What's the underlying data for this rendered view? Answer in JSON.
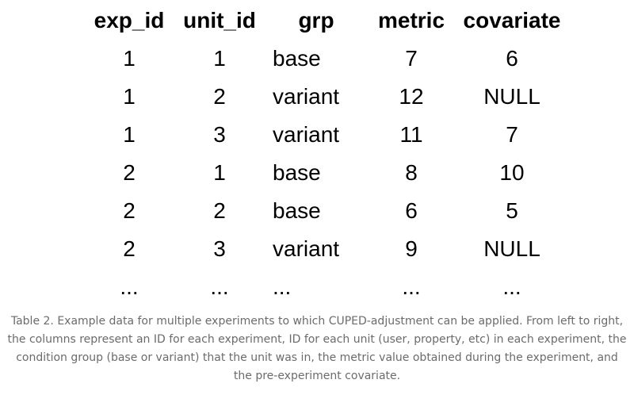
{
  "table": {
    "columns": [
      "exp_id",
      "unit_id",
      "grp",
      "metric",
      "covariate"
    ],
    "rows": [
      [
        "1",
        "1",
        "base",
        "7",
        "6"
      ],
      [
        "1",
        "2",
        "variant",
        "12",
        "NULL"
      ],
      [
        "1",
        "3",
        "variant",
        "11",
        "7"
      ],
      [
        "2",
        "1",
        "base",
        "8",
        "10"
      ],
      [
        "2",
        "2",
        "base",
        "6",
        "5"
      ],
      [
        "2",
        "3",
        "variant",
        "9",
        "NULL"
      ],
      [
        "...",
        "...",
        "...",
        "...",
        "..."
      ]
    ]
  },
  "caption": "Table 2. Example data for multiple experiments to which CUPED-adjustment can be applied. From left to right, the columns represent an ID for each experiment, ID for each unit (user, property, etc) in each experiment, the condition group (base or variant) that the unit was in, the metric value obtained during the experiment, and the pre-experiment covariate."
}
